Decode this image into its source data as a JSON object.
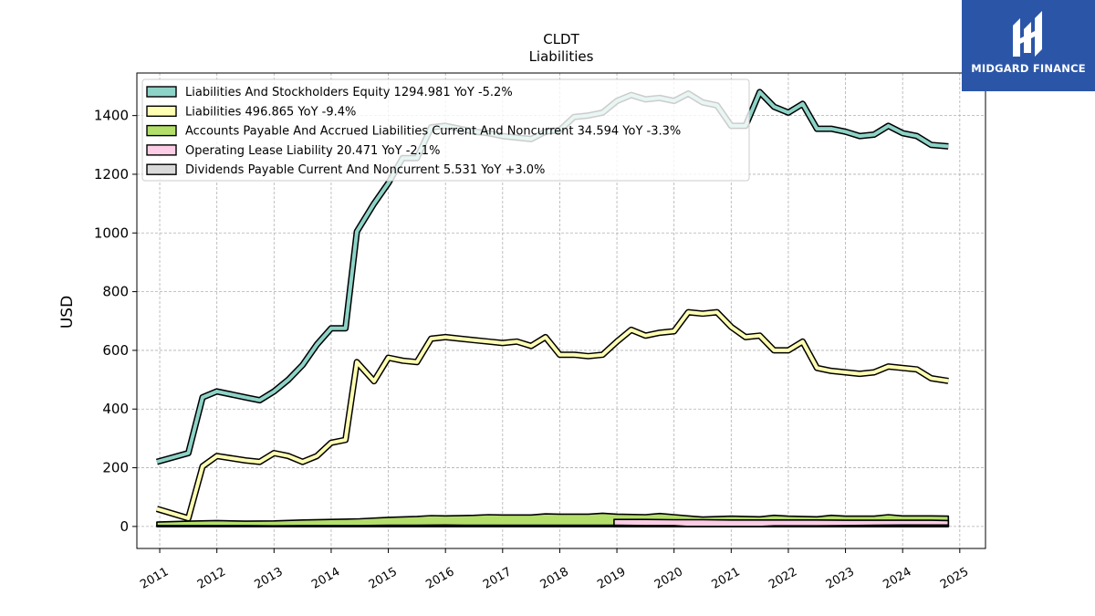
{
  "header": {
    "title": "CLDT",
    "subtitle": "Liabilities"
  },
  "logo": {
    "text": "MIDGARD FINANCE",
    "background": "#2b56a8"
  },
  "chart_data": {
    "type": "line",
    "ylabel": "USD",
    "xlabel": "",
    "xlim": [
      2010.6,
      2025.45
    ],
    "ylim": [
      -75,
      1545
    ],
    "x_ticks": [
      "2011",
      "2012",
      "2013",
      "2014",
      "2015",
      "2016",
      "2017",
      "2018",
      "2019",
      "2020",
      "2021",
      "2022",
      "2023",
      "2024",
      "2025"
    ],
    "y_ticks": [
      0,
      200,
      400,
      600,
      800,
      1000,
      1200,
      1400
    ],
    "grid": true,
    "legend_position": "top-left",
    "series": [
      {
        "name": "Liabilities And Stockholders Equity",
        "legend": "Liabilities And Stockholders Equity  1294.981 YoY -5.2%",
        "color": "#8dd3c7",
        "x": [
          2010.95,
          2011.5,
          2011.75,
          2012.0,
          2012.5,
          2012.75,
          2013.0,
          2013.25,
          2013.5,
          2013.75,
          2014.0,
          2014.25,
          2014.45,
          2014.75,
          2015.0,
          2015.25,
          2015.5,
          2015.75,
          2016.0,
          2016.5,
          2016.75,
          2017.0,
          2017.25,
          2017.5,
          2017.75,
          2018.0,
          2018.25,
          2018.5,
          2018.75,
          2019.0,
          2019.25,
          2019.5,
          2019.75,
          2020.0,
          2020.25,
          2020.5,
          2020.75,
          2021.0,
          2021.25,
          2021.5,
          2021.75,
          2022.0,
          2022.25,
          2022.5,
          2022.75,
          2023.0,
          2023.25,
          2023.5,
          2023.75,
          2024.0,
          2024.25,
          2024.5,
          2024.8
        ],
        "values": [
          220,
          250,
          440,
          460,
          440,
          430,
          460,
          500,
          550,
          620,
          675,
          675,
          1005,
          1100,
          1170,
          1255,
          1255,
          1360,
          1365,
          1345,
          1340,
          1330,
          1325,
          1320,
          1345,
          1350,
          1395,
          1400,
          1410,
          1450,
          1470,
          1455,
          1460,
          1450,
          1475,
          1445,
          1435,
          1365,
          1365,
          1480,
          1430,
          1410,
          1440,
          1355,
          1355,
          1345,
          1330,
          1335,
          1365,
          1340,
          1330,
          1300,
          1295
        ]
      },
      {
        "name": "Liabilities",
        "legend": "Liabilities  496.865 YoY -9.4%",
        "color": "#ffffb3",
        "x": [
          2010.95,
          2011.5,
          2011.75,
          2012.0,
          2012.5,
          2012.75,
          2013.0,
          2013.25,
          2013.5,
          2013.75,
          2014.0,
          2014.25,
          2014.45,
          2014.75,
          2015.0,
          2015.25,
          2015.5,
          2015.75,
          2016.0,
          2016.5,
          2016.75,
          2017.0,
          2017.25,
          2017.5,
          2017.75,
          2018.0,
          2018.25,
          2018.5,
          2018.75,
          2019.0,
          2019.25,
          2019.5,
          2019.75,
          2020.0,
          2020.25,
          2020.5,
          2020.75,
          2021.0,
          2021.25,
          2021.5,
          2021.75,
          2022.0,
          2022.25,
          2022.5,
          2022.75,
          2023.0,
          2023.25,
          2023.5,
          2023.75,
          2024.0,
          2024.25,
          2024.5,
          2024.8
        ],
        "values": [
          60,
          28,
          205,
          240,
          225,
          220,
          250,
          240,
          220,
          240,
          285,
          295,
          560,
          495,
          575,
          565,
          560,
          640,
          645,
          635,
          630,
          625,
          630,
          615,
          645,
          585,
          585,
          580,
          585,
          630,
          670,
          650,
          660,
          665,
          730,
          725,
          730,
          680,
          645,
          650,
          600,
          600,
          630,
          540,
          530,
          525,
          520,
          525,
          545,
          540,
          535,
          505,
          496
        ]
      },
      {
        "name": "Accounts Payable And Accrued Liabilities Current And Noncurrent",
        "legend": "Accounts Payable And Accrued Liabilities Current And Noncurrent  34.594 YoY -3.3%",
        "color": "#b3de69",
        "x": [
          2010.95,
          2011.5,
          2012.0,
          2012.5,
          2013.0,
          2013.5,
          2014.0,
          2014.5,
          2015.0,
          2015.5,
          2015.75,
          2016.0,
          2016.5,
          2016.75,
          2017.0,
          2017.5,
          2017.75,
          2018.0,
          2018.5,
          2018.75,
          2019.0,
          2019.5,
          2019.75,
          2020.0,
          2020.5,
          2021.0,
          2021.5,
          2021.75,
          2022.0,
          2022.5,
          2022.75,
          2023.0,
          2023.5,
          2023.75,
          2024.0,
          2024.5,
          2024.8
        ],
        "values": [
          15,
          18,
          20,
          18,
          19,
          22,
          24,
          26,
          31,
          34,
          37,
          36,
          38,
          40,
          39,
          39,
          43,
          42,
          42,
          45,
          42,
          40,
          44,
          40,
          32,
          35,
          33,
          38,
          35,
          33,
          38,
          35,
          35,
          40,
          36,
          36,
          35
        ]
      },
      {
        "name": "Operating Lease Liability",
        "legend": "Operating Lease Liability  20.471 YoY -2.1%",
        "color": "#fccde5",
        "x": [
          2018.95,
          2019.5,
          2020.0,
          2020.5,
          2021.0,
          2021.5,
          2022.0,
          2022.5,
          2023.0,
          2023.5,
          2024.0,
          2024.5,
          2024.8
        ],
        "values": [
          24,
          24,
          23,
          23,
          22,
          22,
          22,
          22,
          21,
          21,
          21,
          21,
          20
        ]
      },
      {
        "name": "Dividends Payable Current And Noncurrent",
        "legend": "Dividends Payable Current And Noncurrent  5.531 YoY +3.0%",
        "color": "#d9d9d9",
        "x": [
          2010.95,
          2011.5,
          2012.0,
          2012.5,
          2013.0,
          2013.5,
          2014.0,
          2014.5,
          2015.0,
          2015.5,
          2016.0,
          2016.5,
          2017.0,
          2017.5,
          2018.0,
          2018.5,
          2019.0,
          2019.5,
          2020.0,
          2020.25,
          2020.75,
          2021.0,
          2021.5,
          2021.75,
          2022.0,
          2022.5,
          2023.0,
          2023.5,
          2024.0,
          2024.5,
          2024.8
        ],
        "values": [
          3,
          3,
          3,
          3,
          2,
          3,
          3,
          3,
          4,
          4,
          5,
          4,
          4,
          4,
          4,
          4,
          4,
          3,
          3,
          0,
          0,
          0,
          0,
          2,
          2,
          2,
          3,
          4,
          5,
          5,
          5
        ]
      }
    ]
  }
}
